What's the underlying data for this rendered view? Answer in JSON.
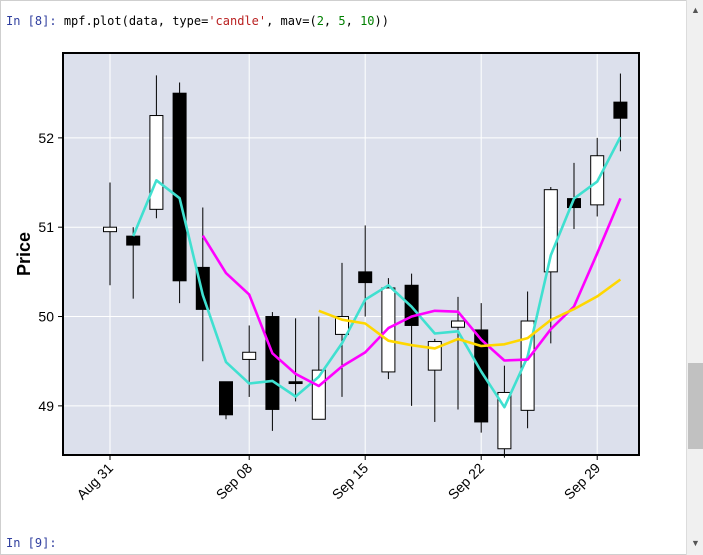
{
  "cells": {
    "input": {
      "prompt": "In [8]:",
      "call": "mpf.plot(data, ",
      "kw1": "type=",
      "str1": "'candle'",
      "sep": ", mav=(",
      "n1": "2",
      "c1": ", ",
      "n2": "5",
      "c2": ", ",
      "n3": "10",
      "end": "))"
    },
    "next_prompt": "In [9]:"
  },
  "chart_data": {
    "type": "candlestick",
    "ylabel": "Price",
    "ylim": [
      48.45,
      52.95
    ],
    "yticks": [
      49,
      50,
      51,
      52
    ],
    "grid": true,
    "facecolor": "#dce0ec",
    "moving_averages": [
      2,
      5,
      10
    ],
    "ma_colors": [
      "#40e0d0",
      "#ff00ff",
      "#ffd700"
    ],
    "xtick_labels": [
      {
        "label": "Aug 31",
        "index": 0
      },
      {
        "label": "Sep 08",
        "index": 6
      },
      {
        "label": "Sep 15",
        "index": 11
      },
      {
        "label": "Sep 22",
        "index": 16
      },
      {
        "label": "Sep 29",
        "index": 21
      }
    ],
    "candles": [
      {
        "open": 50.95,
        "high": 51.5,
        "low": 50.35,
        "close": 51.0
      },
      {
        "open": 50.9,
        "high": 51.0,
        "low": 50.2,
        "close": 50.8
      },
      {
        "open": 51.2,
        "high": 52.7,
        "low": 51.1,
        "close": 52.25
      },
      {
        "open": 52.5,
        "high": 52.62,
        "low": 50.15,
        "close": 50.4
      },
      {
        "open": 50.55,
        "high": 51.22,
        "low": 49.5,
        "close": 50.08
      },
      {
        "open": 49.27,
        "high": 49.27,
        "low": 48.85,
        "close": 48.9
      },
      {
        "open": 49.52,
        "high": 49.9,
        "low": 49.1,
        "close": 49.6
      },
      {
        "open": 50.0,
        "high": 50.05,
        "low": 48.72,
        "close": 48.96
      },
      {
        "open": 49.27,
        "high": 49.98,
        "low": 49.05,
        "close": 49.25
      },
      {
        "open": 48.85,
        "high": 50.0,
        "low": 48.85,
        "close": 49.4
      },
      {
        "open": 49.8,
        "high": 50.6,
        "low": 49.1,
        "close": 50.0
      },
      {
        "open": 50.5,
        "high": 51.02,
        "low": 50.0,
        "close": 50.38
      },
      {
        "open": 49.38,
        "high": 50.43,
        "low": 49.3,
        "close": 50.32
      },
      {
        "open": 50.35,
        "high": 50.48,
        "low": 49.0,
        "close": 49.9
      },
      {
        "open": 49.4,
        "high": 49.75,
        "low": 48.82,
        "close": 49.72
      },
      {
        "open": 49.88,
        "high": 50.22,
        "low": 48.96,
        "close": 49.95
      },
      {
        "open": 49.85,
        "high": 50.15,
        "low": 48.7,
        "close": 48.82
      },
      {
        "open": 48.52,
        "high": 49.45,
        "low": 48.42,
        "close": 49.15
      },
      {
        "open": 48.95,
        "high": 50.28,
        "low": 48.75,
        "close": 49.95
      },
      {
        "open": 50.5,
        "high": 51.45,
        "low": 49.7,
        "close": 51.42
      },
      {
        "open": 51.32,
        "high": 51.72,
        "low": 50.98,
        "close": 51.22
      },
      {
        "open": 51.25,
        "high": 52.0,
        "low": 51.12,
        "close": 51.8
      },
      {
        "open": 52.4,
        "high": 52.72,
        "low": 51.85,
        "close": 52.22
      }
    ]
  }
}
